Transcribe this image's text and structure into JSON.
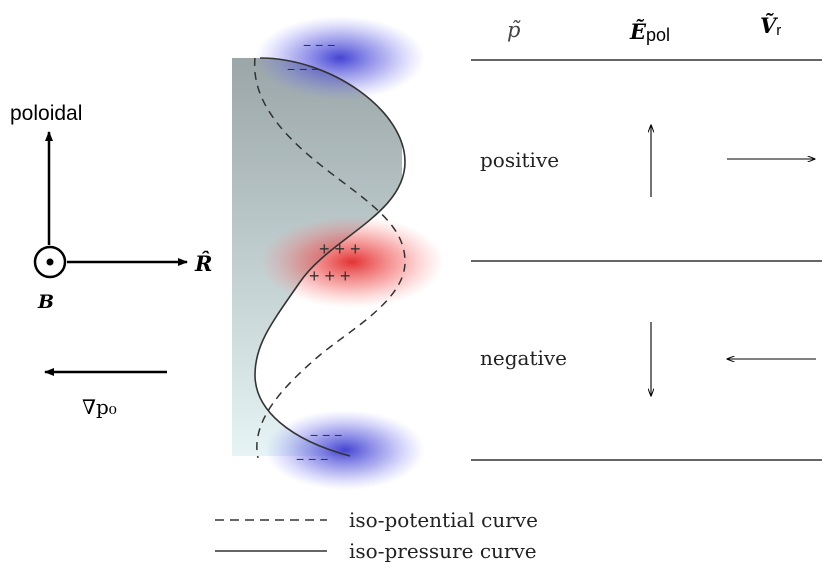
{
  "axes": {
    "poloidal": "poloidal",
    "r_hat": "R̂",
    "b_field": "B",
    "grad_p0": "∇p₀"
  },
  "columns": {
    "p_tilde": "p̃",
    "e_pol_main": "Ẽ",
    "e_pol_sub": "pol",
    "v_r_main": "Ṽ",
    "v_r_sub": "r"
  },
  "rows": [
    {
      "label": "positive",
      "e_pol_direction": "up",
      "v_r_direction": "right"
    },
    {
      "label": "negative",
      "e_pol_direction": "down",
      "v_r_direction": "left"
    }
  ],
  "charges": {
    "top_sign": "− − −",
    "top_sign_2": "− − −",
    "middle_sign": "+ + +",
    "middle_sign_2": "+ + +",
    "bottom_sign": "− − −",
    "bottom_sign_2": "− − −"
  },
  "legend": [
    {
      "style": "dashed",
      "label": "iso-potential curve"
    },
    {
      "style": "solid",
      "label": "iso-pressure curve"
    }
  ],
  "colors": {
    "negative_blob": "#3a3ad0",
    "positive_blob": "#e03030",
    "plasma_gradient_top": "#9aa6a8",
    "plasma_gradient_bottom": "#e6f4f6"
  }
}
